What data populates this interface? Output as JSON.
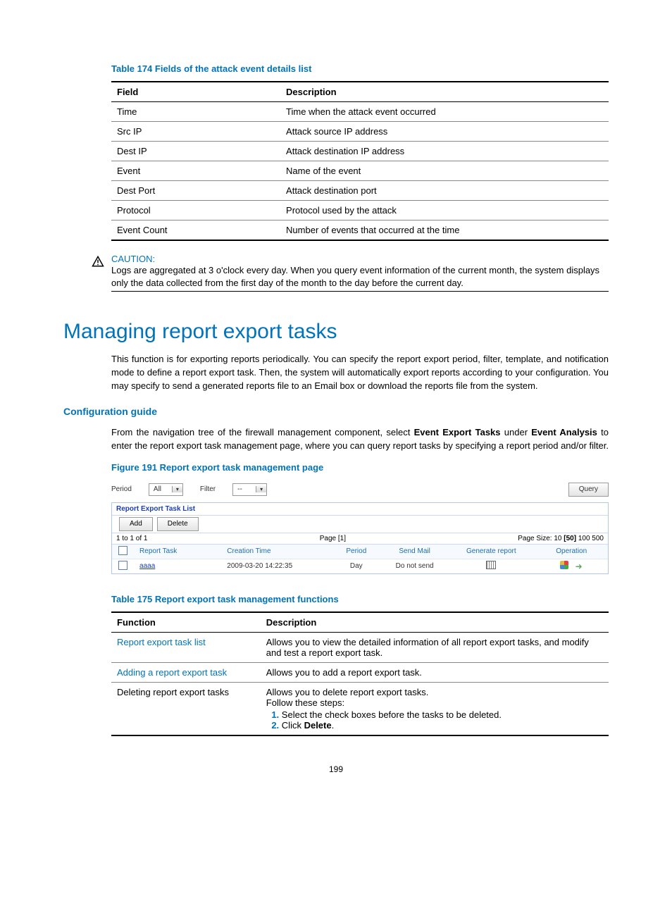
{
  "table174": {
    "caption": "Table 174 Fields of the attack event details list",
    "headers": [
      "Field",
      "Description"
    ],
    "col_widths": [
      "34%",
      "66%"
    ],
    "rows": [
      [
        "Time",
        "Time when the attack event occurred"
      ],
      [
        "Src IP",
        "Attack source IP address"
      ],
      [
        "Dest IP",
        "Attack destination IP address"
      ],
      [
        "Event",
        "Name of the event"
      ],
      [
        "Dest Port",
        "Attack destination port"
      ],
      [
        "Protocol",
        "Protocol used by the attack"
      ],
      [
        "Event Count",
        "Number of events that occurred at the time"
      ]
    ]
  },
  "caution": {
    "label": "CAUTION:",
    "body": "Logs are aggregated at 3 o'clock every day. When you query event information of the current month, the system displays only the data collected from the first day of the month to the day before the current day."
  },
  "section": {
    "title": "Managing report export tasks",
    "intro": "This function is for exporting reports periodically. You can specify the report export period, filter, template, and notification mode to define a report export task. Then, the system will automatically export reports according to your configuration. You may specify to send a generated reports file to an Email box or download the reports file from the system."
  },
  "config": {
    "heading": "Configuration guide",
    "para_pre": "From the navigation tree of the firewall management component, select ",
    "bold1": "Event Export Tasks",
    "mid1": " under ",
    "bold2": "Event Analysis",
    "post": " to enter the report export task management page, where you can query report tasks by specifying a report period and/or filter."
  },
  "figure": {
    "caption": "Figure 191 Report export task management page",
    "period_label": "Period",
    "period_value": "All",
    "filter_label": "Filter",
    "filter_value": "--",
    "query": "Query",
    "panel_title": "Report Export Task List",
    "add": "Add",
    "delete": "Delete",
    "range": "1 to 1 of 1",
    "page": "Page [1]",
    "pagesize_label": "Page Size: 10 ",
    "pagesize_sel": "[50]",
    "pagesize_rest": " 100 500",
    "grid_headers": [
      "",
      "Report Task",
      "Creation Time",
      "Period",
      "Send Mail",
      "Generate report",
      "Operation"
    ],
    "grid_col_widths": [
      "30px",
      "120px",
      "150px",
      "70px",
      "90px",
      "120px",
      "100px"
    ],
    "row": {
      "task": "aaaa",
      "time": "2009-03-20 14:22:35",
      "period": "Day",
      "mail": "Do not send"
    }
  },
  "table175": {
    "caption": "Table 175 Report export task management functions",
    "headers": [
      "Function",
      "Description"
    ],
    "col_widths": [
      "30%",
      "70%"
    ],
    "row1": {
      "func": "Report export task list",
      "desc": "Allows you to view the detailed information of all report export tasks, and modify and test a report export task."
    },
    "row2": {
      "func": "Adding a report export task",
      "desc": "Allows you to add a report export task."
    },
    "row3": {
      "func": "Deleting report export tasks",
      "line1": "Allows you to delete report export tasks.",
      "line2": "Follow these steps:",
      "step1": "Select the check boxes before the tasks to be deleted.",
      "step2_pre": "Click ",
      "step2_bold": "Delete",
      "step2_post": "."
    }
  },
  "page_number": "199",
  "colors": {
    "accent": "#0073ba",
    "link": "#0073ba",
    "grid_header": "#1a6fb0",
    "panel_title": "#1a3fb0"
  }
}
